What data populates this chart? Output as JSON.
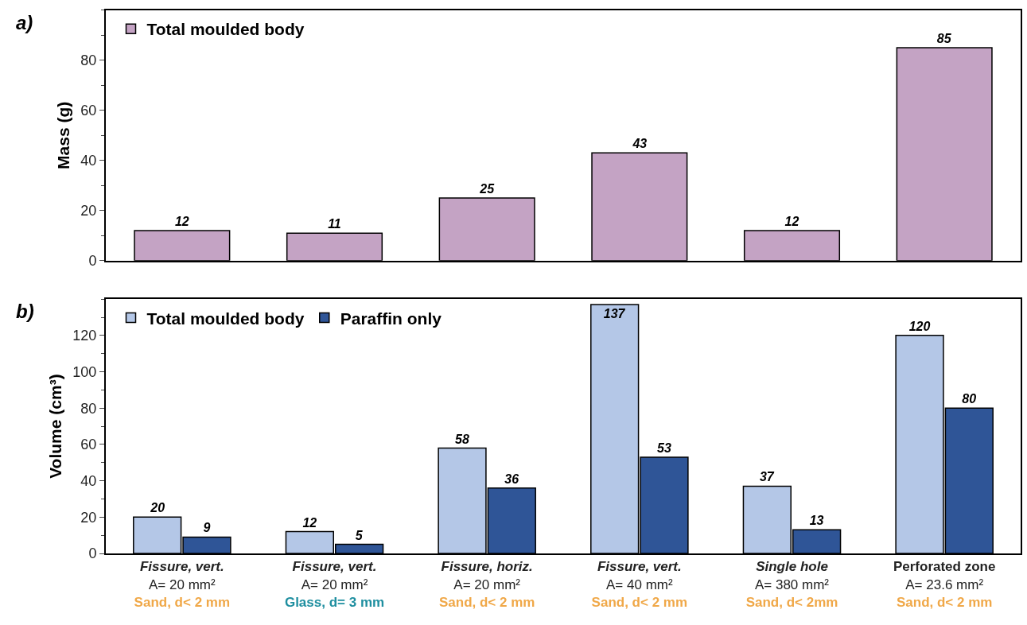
{
  "chart_data": [
    {
      "type": "bar",
      "ylabel": "Mass (g)",
      "annotations": [
        "a)"
      ],
      "categories": [
        null,
        null,
        null,
        null,
        null,
        null
      ],
      "series": [
        {
          "name": "Total moulded body",
          "color": "#c4a3c4",
          "values": [
            12,
            11,
            25,
            43,
            12,
            85
          ]
        }
      ],
      "ylim": [
        0,
        100
      ],
      "yticks": [
        0,
        20,
        40,
        60,
        80
      ],
      "data_labels": true,
      "legend": "top left",
      "tick_labels": "y"
    },
    {
      "type": "bar",
      "ylabel": "Volume (cm³)",
      "annotations": [
        "b)"
      ],
      "categories": [
        "Fissure, vert.\nA= 20 mm²\nSand, d< 2 mm",
        "Fissure, vert.\nA= 20 mm²\nGlass, d= 3 mm",
        "Fissure, horiz.\nA= 20 mm²\nSand, d< 2 mm",
        "Fissure, vert.\nA= 40 mm²\nSand, d< 2 mm",
        "Single hole\nA= 380 mm²\nSand, d< 2mm",
        "Perforated zone\nA= 23.6 mm²\nSand, d< 2 mm"
      ],
      "series": [
        {
          "name": "Total moulded body",
          "color": "#b4c7e7",
          "values": [
            20,
            12,
            58,
            137,
            37,
            120
          ]
        },
        {
          "name": "Paraffin only",
          "color": "#2f5597",
          "values": [
            9,
            5,
            36,
            53,
            13,
            80
          ]
        }
      ],
      "ylim": [
        0,
        140
      ],
      "yticks": [
        0,
        20,
        40,
        60,
        80,
        100,
        120
      ],
      "data_labels": true,
      "legend": "top left"
    }
  ]
}
